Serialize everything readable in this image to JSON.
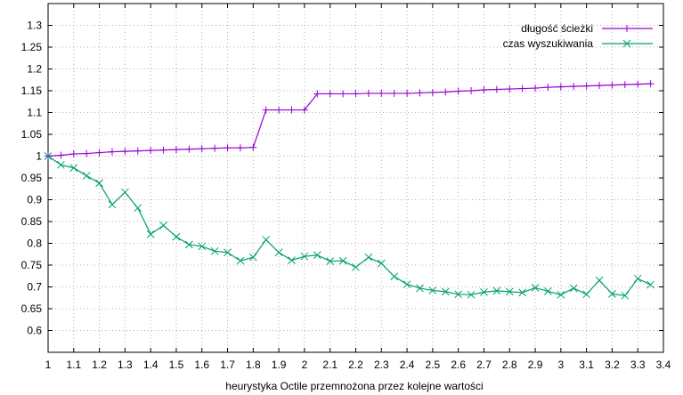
{
  "chart_data": {
    "type": "line",
    "title": "",
    "xlabel": "heurystyka Octile przemnożona przez kolejne wartości",
    "ylabel": "",
    "xlim": [
      1,
      3.4
    ],
    "ylim": [
      0.55,
      1.35
    ],
    "x_ticks": [
      "1",
      "1.1",
      "1.2",
      "1.3",
      "1.4",
      "1.5",
      "1.6",
      "1.7",
      "1.8",
      "1.9",
      "2",
      "2.1",
      "2.2",
      "2.3",
      "2.4",
      "2.5",
      "2.6",
      "2.7",
      "2.8",
      "2.9",
      "3",
      "3.1",
      "3.2",
      "3.3",
      "3.4"
    ],
    "y_ticks": [
      "0.6",
      "0.65",
      "0.7",
      "0.75",
      "0.8",
      "0.85",
      "0.9",
      "0.95",
      "1",
      "1.05",
      "1.1",
      "1.15",
      "1.2",
      "1.25",
      "1.3"
    ],
    "grid": true,
    "legend_position": "top-right",
    "x": [
      1,
      1.05,
      1.1,
      1.15,
      1.2,
      1.25,
      1.3,
      1.35,
      1.4,
      1.45,
      1.5,
      1.55,
      1.6,
      1.65,
      1.7,
      1.75,
      1.8,
      1.85,
      1.9,
      1.95,
      2,
      2.05,
      2.1,
      2.15,
      2.2,
      2.25,
      2.3,
      2.35,
      2.4,
      2.45,
      2.5,
      2.55,
      2.6,
      2.65,
      2.7,
      2.75,
      2.8,
      2.85,
      2.9,
      2.95,
      3,
      3.05,
      3.1,
      3.15,
      3.2,
      3.25,
      3.3,
      3.35
    ],
    "series": [
      {
        "name": "długość ścieżki",
        "color": "#9400d3",
        "marker": "plus",
        "values": [
          1.0,
          1.002,
          1.005,
          1.006,
          1.008,
          1.01,
          1.011,
          1.012,
          1.013,
          1.014,
          1.015,
          1.016,
          1.017,
          1.018,
          1.019,
          1.019,
          1.02,
          1.106,
          1.106,
          1.106,
          1.106,
          1.143,
          1.143,
          1.143,
          1.143,
          1.144,
          1.144,
          1.144,
          1.144,
          1.145,
          1.146,
          1.147,
          1.149,
          1.15,
          1.152,
          1.153,
          1.154,
          1.155,
          1.156,
          1.158,
          1.159,
          1.16,
          1.161,
          1.162,
          1.163,
          1.164,
          1.165,
          1.166
        ]
      },
      {
        "name": "czas wyszukiwania",
        "color": "#009e73",
        "marker": "cross",
        "values": [
          1.0,
          0.98,
          0.973,
          0.955,
          0.938,
          0.889,
          0.917,
          0.881,
          0.821,
          0.841,
          0.815,
          0.797,
          0.793,
          0.782,
          0.779,
          0.76,
          0.768,
          0.808,
          0.779,
          0.761,
          0.77,
          0.773,
          0.759,
          0.76,
          0.745,
          0.768,
          0.754,
          0.724,
          0.706,
          0.697,
          0.692,
          0.689,
          0.683,
          0.682,
          0.688,
          0.691,
          0.689,
          0.687,
          0.698,
          0.69,
          0.682,
          0.697,
          0.683,
          0.715,
          0.684,
          0.68,
          0.719,
          0.705
        ]
      }
    ]
  }
}
